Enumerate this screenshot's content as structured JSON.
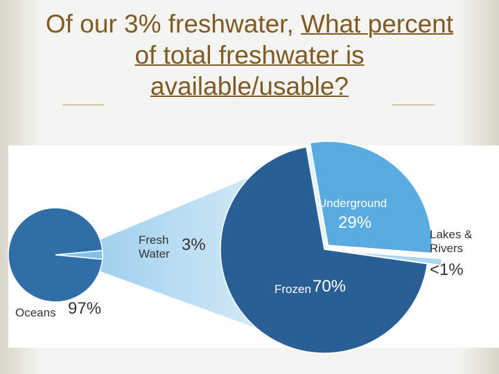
{
  "title": [
    "Of our 3% freshwater,",
    "What percent of total freshwater is available/usable?"
  ],
  "chart_data": [
    {
      "type": "pie",
      "categories": [
        "Oceans",
        "Fresh Water"
      ],
      "values": [
        97,
        3
      ],
      "value_labels": [
        "97%",
        "3%"
      ],
      "colors": [
        "#2f6ea6",
        "#7fc3ea"
      ]
    },
    {
      "type": "pie",
      "categories": [
        "Underground",
        "Lakes & Rivers",
        "Frozen"
      ],
      "values": [
        29,
        1,
        70
      ],
      "value_labels": [
        "29%",
        "<1%",
        "70%"
      ],
      "colors": [
        "#5aace0",
        "#a9d6f2",
        "#2a5f96"
      ]
    }
  ]
}
